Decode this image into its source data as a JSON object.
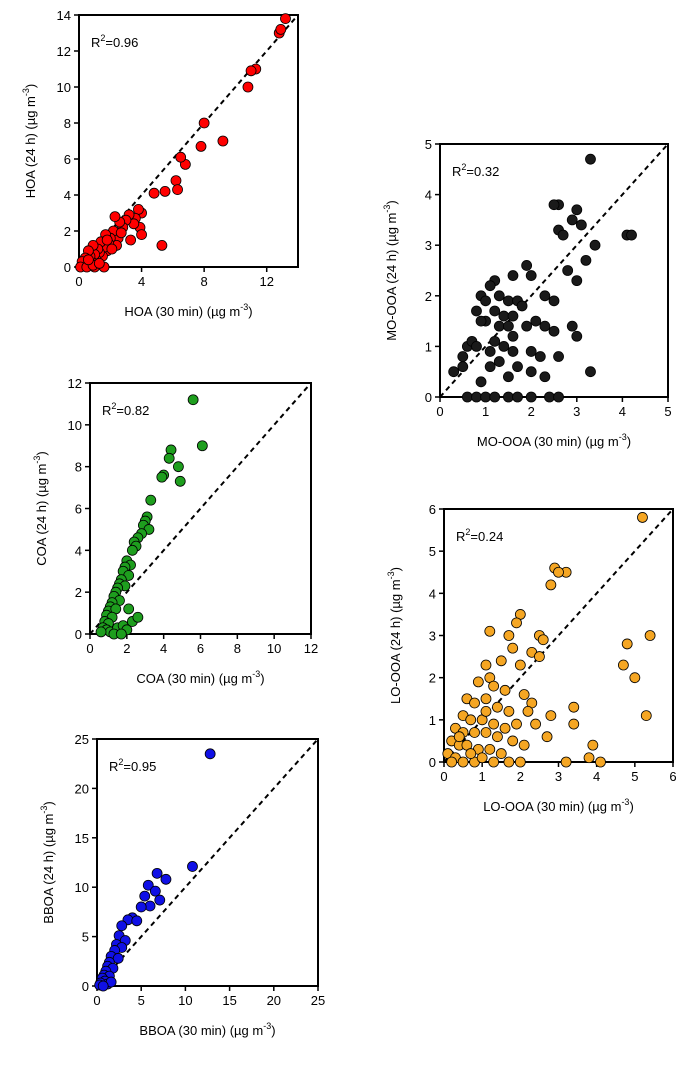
{
  "chart_data": [
    {
      "id": "hoa",
      "type": "scatter",
      "color": "#ff0000",
      "xlabel": "HOA (30 min) (µg m",
      "ylabel": "HOA (24 h) (µg m",
      "unit_exponent": "-3",
      "r2_prefix": "R",
      "r2_exponent": "2",
      "r2_value": "=0.96",
      "xlim": [
        0,
        14
      ],
      "ylim": [
        0,
        14
      ],
      "xticks": [
        0,
        4,
        8,
        12
      ],
      "yticks": [
        0,
        2,
        4,
        6,
        8,
        10,
        12,
        14
      ],
      "one_to_one_line": true,
      "points": [
        [
          13.2,
          13.8
        ],
        [
          12.8,
          13.0
        ],
        [
          12.9,
          13.2
        ],
        [
          11.3,
          11.0
        ],
        [
          11.0,
          10.9
        ],
        [
          10.8,
          10.0
        ],
        [
          9.2,
          7.0
        ],
        [
          8.0,
          8.0
        ],
        [
          7.8,
          6.7
        ],
        [
          6.8,
          5.7
        ],
        [
          6.5,
          6.1
        ],
        [
          6.2,
          4.8
        ],
        [
          6.3,
          4.3
        ],
        [
          5.5,
          4.2
        ],
        [
          4.8,
          4.1
        ],
        [
          5.3,
          1.2
        ],
        [
          4.0,
          3.0
        ],
        [
          3.8,
          3.2
        ],
        [
          3.6,
          2.7
        ],
        [
          3.9,
          2.2
        ],
        [
          4.0,
          1.8
        ],
        [
          3.5,
          2.4
        ],
        [
          3.2,
          2.9
        ],
        [
          3.0,
          2.6
        ],
        [
          2.8,
          2.2
        ],
        [
          2.6,
          2.5
        ],
        [
          2.5,
          1.6
        ],
        [
          2.4,
          1.2
        ],
        [
          2.3,
          2.8
        ],
        [
          2.2,
          2.0
        ],
        [
          2.0,
          1.6
        ],
        [
          1.9,
          1.3
        ],
        [
          1.8,
          0.9
        ],
        [
          1.7,
          1.8
        ],
        [
          1.6,
          1.1
        ],
        [
          1.5,
          0.6
        ],
        [
          1.4,
          1.4
        ],
        [
          1.3,
          0.8
        ],
        [
          1.2,
          1.0
        ],
        [
          1.1,
          0.4
        ],
        [
          1.0,
          0.7
        ],
        [
          0.9,
          1.2
        ],
        [
          0.8,
          0.3
        ],
        [
          0.7,
          0.6
        ],
        [
          0.6,
          0.9
        ],
        [
          0.5,
          0.2
        ],
        [
          0.4,
          0.5
        ],
        [
          0.3,
          0.1
        ],
        [
          0.2,
          0.3
        ],
        [
          0.1,
          0.0
        ],
        [
          0.5,
          0.0
        ],
        [
          1.0,
          0.0
        ],
        [
          1.6,
          0.0
        ],
        [
          2.1,
          1.0
        ],
        [
          2.7,
          1.9
        ],
        [
          3.3,
          1.5
        ],
        [
          0.9,
          0.1
        ],
        [
          1.3,
          0.2
        ],
        [
          0.6,
          0.4
        ],
        [
          1.8,
          1.5
        ]
      ]
    },
    {
      "id": "coa",
      "type": "scatter",
      "color": "#1e9e1e",
      "xlabel": "COA (30 min) (µg m",
      "ylabel": "COA (24 h) (µg m",
      "unit_exponent": "-3",
      "r2_prefix": "R",
      "r2_exponent": "2",
      "r2_value": "=0.82",
      "xlim": [
        0,
        12
      ],
      "ylim": [
        0,
        12
      ],
      "xticks": [
        0,
        2,
        4,
        6,
        8,
        10,
        12
      ],
      "yticks": [
        0,
        2,
        4,
        6,
        8,
        10,
        12
      ],
      "one_to_one_line": true,
      "points": [
        [
          5.6,
          11.2
        ],
        [
          6.1,
          9.0
        ],
        [
          4.4,
          8.8
        ],
        [
          4.3,
          8.4
        ],
        [
          4.8,
          8.0
        ],
        [
          4.0,
          7.6
        ],
        [
          3.9,
          7.5
        ],
        [
          4.9,
          7.3
        ],
        [
          3.3,
          6.4
        ],
        [
          3.1,
          5.6
        ],
        [
          3.0,
          5.4
        ],
        [
          2.9,
          5.2
        ],
        [
          3.2,
          5.0
        ],
        [
          2.8,
          4.8
        ],
        [
          2.6,
          4.6
        ],
        [
          2.4,
          4.4
        ],
        [
          2.5,
          4.2
        ],
        [
          2.3,
          4.0
        ],
        [
          2.0,
          3.5
        ],
        [
          2.2,
          3.3
        ],
        [
          1.9,
          3.2
        ],
        [
          1.8,
          3.0
        ],
        [
          2.1,
          2.8
        ],
        [
          1.7,
          2.6
        ],
        [
          1.6,
          2.4
        ],
        [
          1.9,
          2.3
        ],
        [
          1.5,
          2.2
        ],
        [
          1.4,
          2.0
        ],
        [
          1.3,
          1.8
        ],
        [
          1.6,
          1.6
        ],
        [
          1.2,
          1.5
        ],
        [
          1.1,
          1.3
        ],
        [
          1.0,
          1.1
        ],
        [
          1.4,
          1.2
        ],
        [
          0.9,
          0.9
        ],
        [
          1.2,
          0.8
        ],
        [
          0.8,
          0.6
        ],
        [
          1.0,
          0.5
        ],
        [
          0.7,
          0.3
        ],
        [
          0.9,
          0.2
        ],
        [
          1.1,
          0.1
        ],
        [
          1.5,
          0.3
        ],
        [
          1.8,
          0.4
        ],
        [
          2.0,
          0.2
        ],
        [
          2.3,
          0.6
        ],
        [
          2.6,
          0.8
        ],
        [
          1.3,
          0.0
        ],
        [
          1.7,
          0.0
        ],
        [
          0.6,
          0.1
        ],
        [
          2.1,
          1.2
        ]
      ]
    },
    {
      "id": "bboa",
      "type": "scatter",
      "color": "#1010e6",
      "xlabel": "BBOA (30 min) (µg m",
      "ylabel": "BBOA (24 h) (µg m",
      "unit_exponent": "-3",
      "r2_prefix": "R",
      "r2_exponent": "2",
      "r2_value": "=0.95",
      "xlim": [
        0,
        25
      ],
      "ylim": [
        0,
        25
      ],
      "xticks": [
        0,
        5,
        10,
        15,
        20,
        25
      ],
      "yticks": [
        0,
        5,
        10,
        15,
        20,
        25
      ],
      "one_to_one_line": true,
      "points": [
        [
          12.8,
          23.5
        ],
        [
          10.8,
          12.1
        ],
        [
          6.8,
          11.4
        ],
        [
          7.8,
          10.8
        ],
        [
          5.8,
          10.2
        ],
        [
          6.6,
          9.6
        ],
        [
          5.4,
          9.1
        ],
        [
          7.1,
          8.7
        ],
        [
          6.0,
          8.1
        ],
        [
          5.0,
          8.0
        ],
        [
          4.0,
          6.9
        ],
        [
          3.5,
          6.7
        ],
        [
          4.5,
          6.6
        ],
        [
          2.8,
          6.1
        ],
        [
          2.5,
          5.1
        ],
        [
          3.2,
          4.6
        ],
        [
          2.2,
          4.2
        ],
        [
          2.8,
          3.9
        ],
        [
          2.0,
          3.6
        ],
        [
          1.6,
          3.0
        ],
        [
          2.4,
          2.8
        ],
        [
          1.4,
          2.4
        ],
        [
          1.2,
          2.0
        ],
        [
          1.8,
          1.8
        ],
        [
          1.0,
          1.5
        ],
        [
          0.8,
          1.1
        ],
        [
          1.4,
          1.0
        ],
        [
          0.6,
          0.8
        ],
        [
          0.9,
          0.5
        ],
        [
          0.4,
          0.3
        ],
        [
          0.3,
          0.1
        ],
        [
          1.2,
          0.2
        ],
        [
          1.6,
          0.4
        ],
        [
          0.7,
          0.0
        ]
      ]
    },
    {
      "id": "mo-ooa",
      "type": "scatter",
      "color": "#1a1a1a",
      "xlabel": "MO-OOA (30 min) (µg m",
      "ylabel": "MO-OOA (24 h) (µg m",
      "unit_exponent": "-3",
      "r2_prefix": "R",
      "r2_exponent": "2",
      "r2_value": "=0.32",
      "xlim": [
        0,
        5
      ],
      "ylim": [
        0,
        5
      ],
      "xticks": [
        0,
        1,
        2,
        3,
        4,
        5
      ],
      "yticks": [
        0,
        1,
        2,
        3,
        4,
        5
      ],
      "one_to_one_line": true,
      "points": [
        [
          3.3,
          4.7
        ],
        [
          2.6,
          3.8
        ],
        [
          2.5,
          3.8
        ],
        [
          3.0,
          3.7
        ],
        [
          2.9,
          3.5
        ],
        [
          3.1,
          3.4
        ],
        [
          2.6,
          3.3
        ],
        [
          2.7,
          3.2
        ],
        [
          3.4,
          3.0
        ],
        [
          4.1,
          3.2
        ],
        [
          4.2,
          3.2
        ],
        [
          1.9,
          2.6
        ],
        [
          2.0,
          2.4
        ],
        [
          1.6,
          2.4
        ],
        [
          2.8,
          2.5
        ],
        [
          3.0,
          2.3
        ],
        [
          3.2,
          2.7
        ],
        [
          1.2,
          2.3
        ],
        [
          1.1,
          2.2
        ],
        [
          0.9,
          2.0
        ],
        [
          1.3,
          2.0
        ],
        [
          1.5,
          1.9
        ],
        [
          1.7,
          1.9
        ],
        [
          1.8,
          1.8
        ],
        [
          2.3,
          2.0
        ],
        [
          2.5,
          1.9
        ],
        [
          1.0,
          1.9
        ],
        [
          0.8,
          1.7
        ],
        [
          1.2,
          1.7
        ],
        [
          1.4,
          1.6
        ],
        [
          1.6,
          1.6
        ],
        [
          2.1,
          1.5
        ],
        [
          1.0,
          1.5
        ],
        [
          0.9,
          1.5
        ],
        [
          1.3,
          1.4
        ],
        [
          1.5,
          1.4
        ],
        [
          1.9,
          1.4
        ],
        [
          2.3,
          1.4
        ],
        [
          2.5,
          1.3
        ],
        [
          2.9,
          1.4
        ],
        [
          3.0,
          1.2
        ],
        [
          0.6,
          1.0
        ],
        [
          0.7,
          1.1
        ],
        [
          0.8,
          1.0
        ],
        [
          1.2,
          1.1
        ],
        [
          1.4,
          1.0
        ],
        [
          1.6,
          0.9
        ],
        [
          2.0,
          0.9
        ],
        [
          2.2,
          0.8
        ],
        [
          2.6,
          0.8
        ],
        [
          0.5,
          0.8
        ],
        [
          0.5,
          0.6
        ],
        [
          1.1,
          0.6
        ],
        [
          1.3,
          0.7
        ],
        [
          1.7,
          0.6
        ],
        [
          2.0,
          0.5
        ],
        [
          0.3,
          0.5
        ],
        [
          0.9,
          0.3
        ],
        [
          1.5,
          0.4
        ],
        [
          2.3,
          0.4
        ],
        [
          3.3,
          0.5
        ],
        [
          0.6,
          0.0
        ],
        [
          0.8,
          0.0
        ],
        [
          1.0,
          0.0
        ],
        [
          1.2,
          0.0
        ],
        [
          1.5,
          0.0
        ],
        [
          1.7,
          0.0
        ],
        [
          2.0,
          0.0
        ],
        [
          2.4,
          0.0
        ],
        [
          2.6,
          0.0
        ],
        [
          1.6,
          1.2
        ],
        [
          1.1,
          0.9
        ]
      ]
    },
    {
      "id": "lo-ooa",
      "type": "scatter",
      "color": "#f5a623",
      "xlabel": "LO-OOA (30 min) (µg m",
      "ylabel": "LO-OOA (24 h) (µg m",
      "unit_exponent": "-3",
      "r2_prefix": "R",
      "r2_exponent": "2",
      "r2_value": "=0.24",
      "xlim": [
        0,
        6
      ],
      "ylim": [
        0,
        6
      ],
      "xticks": [
        0,
        1,
        2,
        3,
        4,
        5,
        6
      ],
      "yticks": [
        0,
        1,
        2,
        3,
        4,
        5,
        6
      ],
      "one_to_one_line": true,
      "points": [
        [
          5.2,
          5.8
        ],
        [
          2.9,
          4.6
        ],
        [
          3.2,
          4.5
        ],
        [
          3.0,
          4.5
        ],
        [
          2.8,
          4.2
        ],
        [
          2.0,
          3.5
        ],
        [
          1.2,
          3.1
        ],
        [
          1.9,
          3.3
        ],
        [
          2.5,
          3.0
        ],
        [
          2.6,
          2.9
        ],
        [
          1.7,
          3.0
        ],
        [
          1.8,
          2.7
        ],
        [
          2.3,
          2.6
        ],
        [
          4.8,
          2.8
        ],
        [
          5.4,
          3.0
        ],
        [
          4.7,
          2.3
        ],
        [
          5.0,
          2.0
        ],
        [
          5.3,
          1.1
        ],
        [
          3.4,
          1.3
        ],
        [
          3.4,
          0.9
        ],
        [
          3.9,
          0.4
        ],
        [
          3.8,
          0.1
        ],
        [
          4.1,
          0.0
        ],
        [
          3.2,
          0.0
        ],
        [
          1.1,
          2.3
        ],
        [
          1.2,
          2.0
        ],
        [
          1.5,
          2.4
        ],
        [
          2.0,
          2.3
        ],
        [
          2.5,
          2.5
        ],
        [
          0.9,
          1.9
        ],
        [
          1.3,
          1.8
        ],
        [
          1.6,
          1.7
        ],
        [
          2.1,
          1.6
        ],
        [
          2.3,
          1.4
        ],
        [
          0.6,
          1.5
        ],
        [
          0.8,
          1.4
        ],
        [
          1.1,
          1.5
        ],
        [
          1.4,
          1.3
        ],
        [
          1.7,
          1.2
        ],
        [
          2.2,
          1.2
        ],
        [
          2.8,
          1.1
        ],
        [
          0.5,
          1.1
        ],
        [
          0.7,
          1.0
        ],
        [
          1.0,
          1.0
        ],
        [
          1.3,
          0.9
        ],
        [
          1.6,
          0.8
        ],
        [
          1.9,
          0.9
        ],
        [
          2.4,
          0.9
        ],
        [
          2.7,
          0.6
        ],
        [
          0.3,
          0.8
        ],
        [
          0.5,
          0.7
        ],
        [
          0.8,
          0.7
        ],
        [
          1.1,
          0.7
        ],
        [
          1.4,
          0.6
        ],
        [
          1.8,
          0.5
        ],
        [
          2.1,
          0.4
        ],
        [
          0.2,
          0.5
        ],
        [
          0.4,
          0.4
        ],
        [
          0.6,
          0.4
        ],
        [
          0.9,
          0.3
        ],
        [
          1.2,
          0.3
        ],
        [
          1.5,
          0.2
        ],
        [
          0.1,
          0.2
        ],
        [
          0.3,
          0.1
        ],
        [
          0.5,
          0.0
        ],
        [
          0.8,
          0.0
        ],
        [
          1.0,
          0.1
        ],
        [
          1.3,
          0.0
        ],
        [
          1.7,
          0.0
        ],
        [
          2.0,
          0.0
        ],
        [
          0.2,
          0.0
        ],
        [
          1.1,
          1.2
        ],
        [
          0.4,
          0.6
        ],
        [
          0.7,
          0.2
        ]
      ]
    }
  ]
}
